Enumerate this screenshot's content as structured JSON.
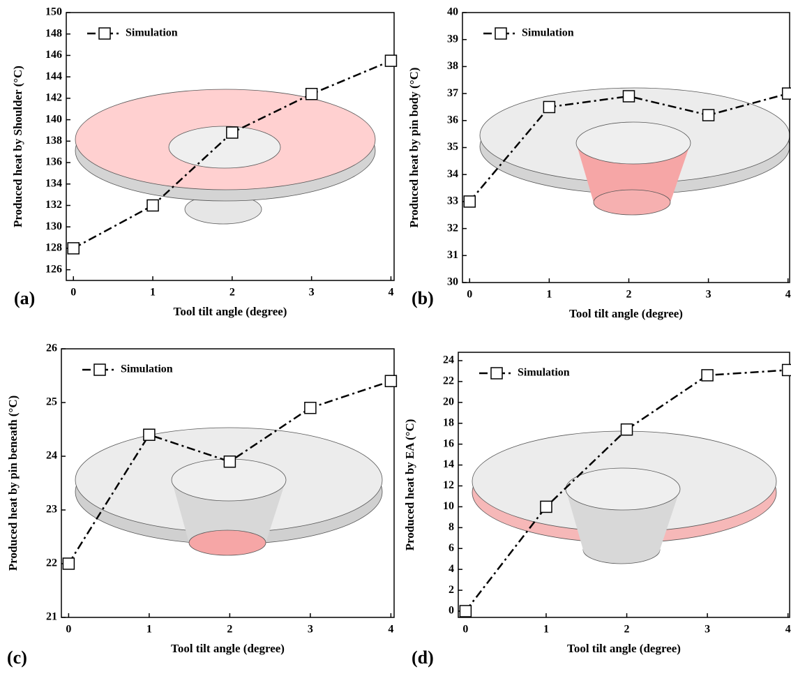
{
  "chart_data": [
    {
      "type": "line",
      "panel_label": "(a)",
      "x_label": "Tool tilt angle (degree)",
      "y_label": "Produced heat by Shoulder (°C)",
      "x": [
        0,
        1,
        2,
        3,
        4
      ],
      "xlim": [
        -0.09,
        4.04
      ],
      "xticks": [
        0,
        1,
        2,
        3,
        4
      ],
      "ylim": [
        125,
        150
      ],
      "yticks": [
        126,
        128,
        130,
        132,
        134,
        136,
        138,
        140,
        142,
        144,
        146,
        148,
        150
      ],
      "series": [
        {
          "name": "Simulation",
          "color": "#000000",
          "values": [
            128,
            132,
            138.8,
            142.4,
            145.5
          ]
        }
      ]
    },
    {
      "type": "line",
      "panel_label": "(b)",
      "x_label": "Tool tilt angle (degree)",
      "y_label": "Produced heat by pin body (°C)",
      "x": [
        0,
        1,
        2,
        3,
        4
      ],
      "xlim": [
        -0.09,
        4.02
      ],
      "xticks": [
        0,
        1,
        2,
        3,
        4
      ],
      "ylim": [
        30,
        40
      ],
      "yticks": [
        30,
        31,
        32,
        33,
        34,
        35,
        36,
        37,
        38,
        39,
        40
      ],
      "series": [
        {
          "name": "Simulation",
          "color": "#000000",
          "values": [
            33,
            36.5,
            36.9,
            36.2,
            37.0
          ]
        }
      ]
    },
    {
      "type": "line",
      "panel_label": "(c)",
      "x_label": "Tool tilt angle (degree)",
      "y_label": "Produced heat by pin beneath (°C)",
      "x": [
        0,
        1,
        2,
        3,
        4
      ],
      "xlim": [
        -0.09,
        4.04
      ],
      "xticks": [
        0,
        1,
        2,
        3,
        4
      ],
      "ylim": [
        21,
        26
      ],
      "yticks": [
        21,
        22,
        23,
        24,
        25,
        26
      ],
      "series": [
        {
          "name": "Simulation",
          "color": "#000000",
          "values": [
            22,
            24.4,
            23.9,
            24.9,
            25.4
          ]
        }
      ]
    },
    {
      "type": "line",
      "panel_label": "(d)",
      "x_label": "Tool tilt angle (degree)",
      "y_label": "Produced heat by EA (°C)",
      "x": [
        0,
        1,
        2,
        3,
        4
      ],
      "xlim": [
        -0.09,
        4.02
      ],
      "xticks": [
        0,
        1,
        2,
        3,
        4
      ],
      "ylim": [
        -0.6,
        24.8
      ],
      "yticks": [
        0,
        2,
        4,
        6,
        8,
        10,
        12,
        14,
        16,
        18,
        20,
        22,
        24
      ],
      "series": [
        {
          "name": "Simulation",
          "color": "#000000",
          "values": [
            0,
            10,
            17.4,
            22.6,
            23.1
          ]
        }
      ]
    }
  ]
}
